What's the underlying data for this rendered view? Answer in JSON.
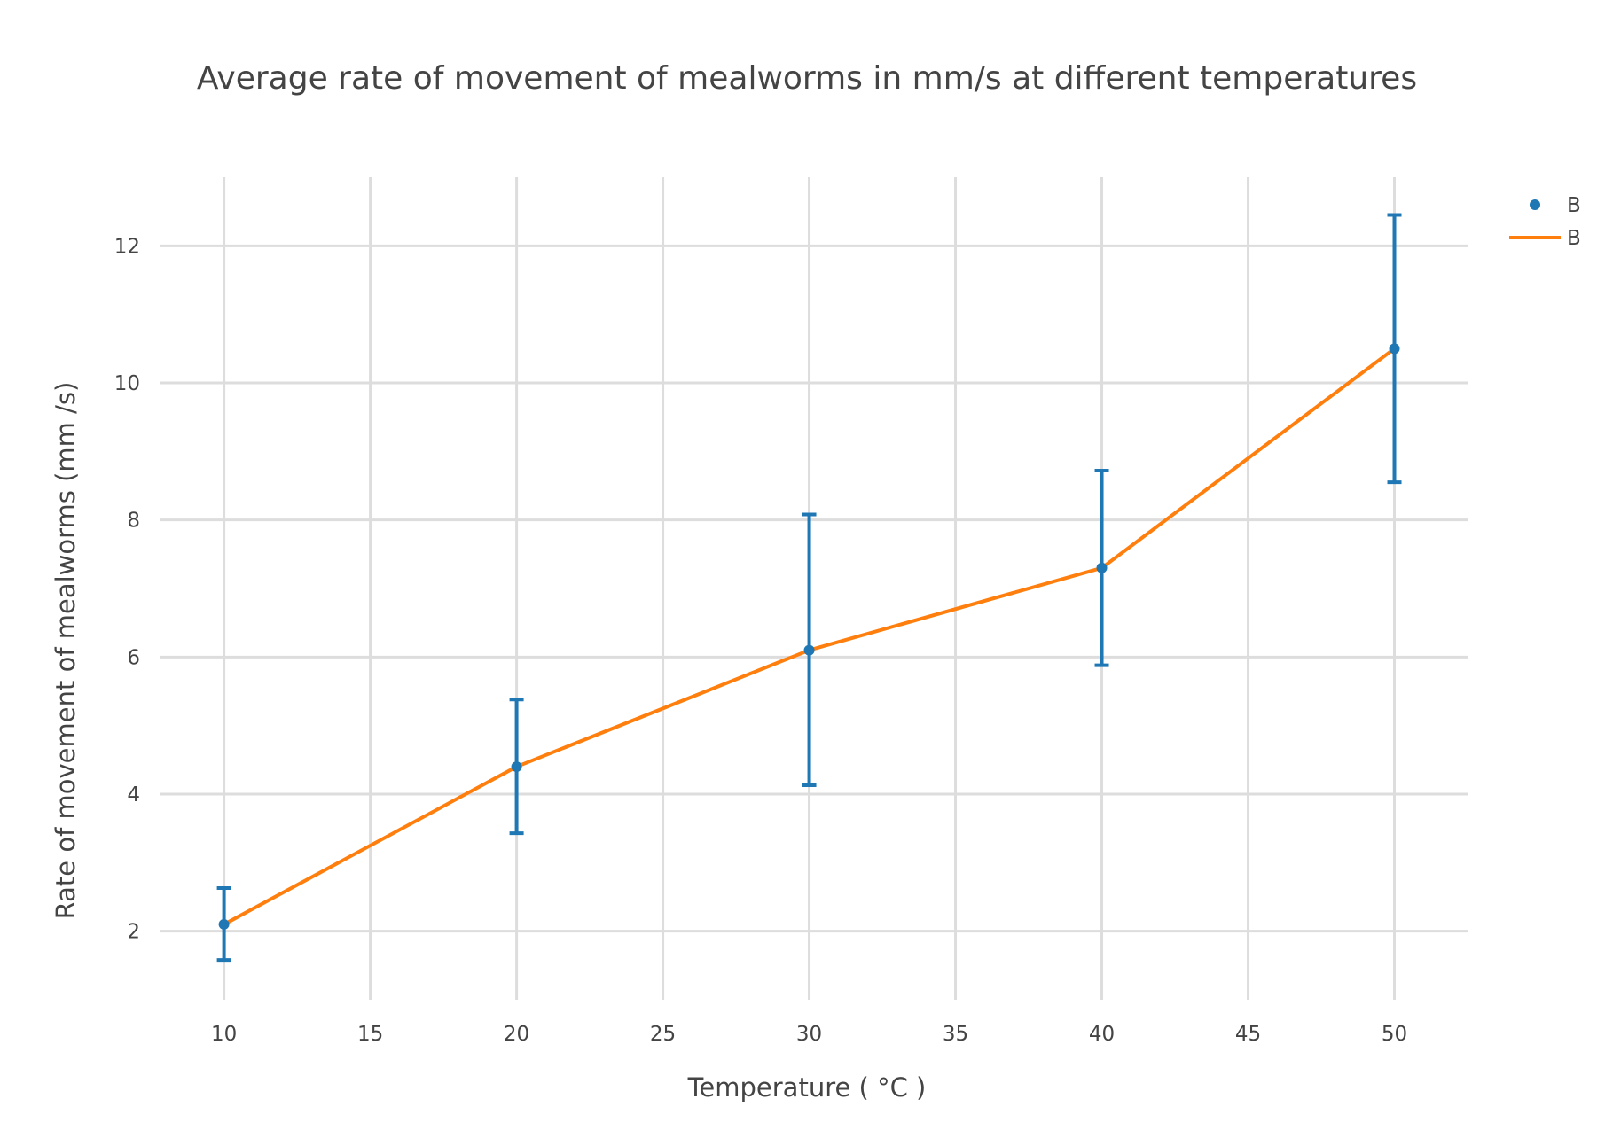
{
  "chart_data": {
    "type": "scatter",
    "title": "Average rate of movement of mealworms in mm/s at different temperatures",
    "xlabel": "Temperature ( °C )",
    "ylabel": "Rate of movement of mealworms (mm /s)",
    "xlim": [
      7.8,
      52.5
    ],
    "ylim": [
      1.0,
      13.0
    ],
    "x_ticks": [
      10,
      15,
      20,
      25,
      30,
      35,
      40,
      45,
      50
    ],
    "y_ticks": [
      2,
      4,
      6,
      8,
      10,
      12
    ],
    "grid": true,
    "legend_position": "top-right",
    "series": [
      {
        "name": "B",
        "mode": "markers",
        "color": "#1f77b4",
        "x": [
          10,
          20,
          30,
          40,
          50
        ],
        "y": [
          2.1,
          4.4,
          6.1,
          7.3,
          10.5
        ],
        "error_plus": [
          0.53,
          0.98,
          1.98,
          1.42,
          1.95
        ],
        "error_minus": [
          0.52,
          0.97,
          1.97,
          1.42,
          1.95
        ]
      },
      {
        "name": "B",
        "mode": "lines",
        "color": "#ff7f0e",
        "x": [
          10,
          20,
          30,
          40,
          50
        ],
        "y": [
          2.1,
          4.4,
          6.1,
          7.3,
          10.5
        ]
      }
    ]
  }
}
